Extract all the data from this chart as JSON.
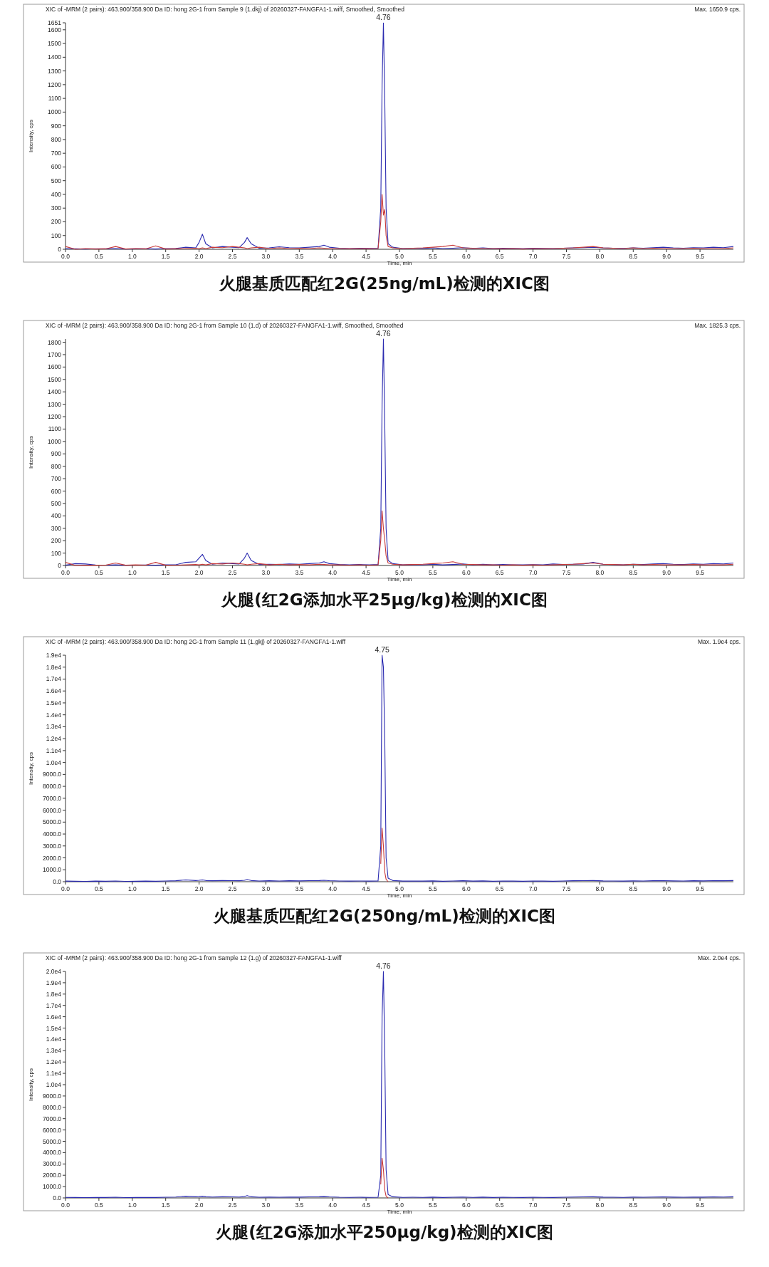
{
  "chart_data": [
    {
      "type": "line",
      "title": "XIC of -MRM (2 pairs): 463.900/358.900 Da ID: hong 2G-1 from Sample 9 (1.dkj) of 20260327-FANGFA1-1.wiff, Smoothed, Smoothed",
      "xlabel": "Time, min",
      "ylabel": "Intensity, cps",
      "annotations": [
        "4.76",
        "Max. 1650.9 cps.",
        "火腿基质匹配红2G(25ng/mL)检测的XIC图"
      ],
      "x": [
        0,
        0.15,
        0.3,
        0.45,
        0.6,
        0.75,
        0.9,
        1.05,
        1.2,
        1.35,
        1.5,
        1.65,
        1.8,
        1.95,
        2.0,
        2.05,
        2.1,
        2.2,
        2.35,
        2.5,
        2.6,
        2.68,
        2.72,
        2.78,
        2.9,
        3.05,
        3.2,
        3.35,
        3.5,
        3.65,
        3.8,
        3.87,
        3.95,
        4.1,
        4.25,
        4.4,
        4.55,
        4.68,
        4.72,
        4.74,
        4.76,
        4.78,
        4.8,
        4.83,
        4.9,
        5.05,
        5.2,
        5.35,
        5.5,
        5.65,
        5.8,
        5.95,
        6.1,
        6.25,
        6.4,
        6.55,
        6.7,
        6.85,
        7.0,
        7.15,
        7.3,
        7.45,
        7.6,
        7.75,
        7.9,
        8.05,
        8.2,
        8.35,
        8.5,
        8.65,
        8.8,
        8.95,
        9.1,
        9.25,
        9.4,
        9.55,
        9.7,
        9.85,
        10.0
      ],
      "series": [
        {
          "color": "#2b2bb0",
          "values": [
            5,
            3,
            2,
            4,
            3,
            5,
            2,
            3,
            4,
            2,
            5,
            6,
            15,
            10,
            50,
            110,
            40,
            10,
            20,
            15,
            12,
            50,
            85,
            40,
            8,
            10,
            18,
            12,
            10,
            15,
            20,
            30,
            15,
            8,
            5,
            8,
            6,
            8,
            300,
            1200,
            1650,
            1100,
            300,
            40,
            15,
            5,
            8,
            6,
            10,
            5,
            8,
            12,
            6,
            10,
            5,
            8,
            6,
            5,
            7,
            6,
            5,
            8,
            10,
            12,
            15,
            10,
            8,
            6,
            10,
            8,
            12,
            15,
            10,
            8,
            12,
            10,
            15,
            12,
            20
          ]
        },
        {
          "color": "#c83a3a",
          "values": [
            20,
            0,
            5,
            2,
            3,
            20,
            2,
            5,
            3,
            25,
            2,
            3,
            5,
            8,
            5,
            10,
            5,
            15,
            12,
            20,
            15,
            10,
            5,
            10,
            15,
            5,
            10,
            5,
            8,
            5,
            10,
            8,
            5,
            5,
            3,
            5,
            3,
            5,
            200,
            400,
            250,
            290,
            100,
            20,
            10,
            5,
            8,
            10,
            15,
            20,
            30,
            10,
            8,
            5,
            5,
            3,
            5,
            2,
            5,
            3,
            5,
            8,
            10,
            15,
            20,
            10,
            8,
            5,
            10,
            5,
            8,
            5,
            5,
            5,
            8,
            5,
            5,
            5,
            10
          ]
        }
      ],
      "xlim": [
        0,
        10
      ],
      "ylim": [
        0,
        1651
      ],
      "xticks": [
        {
          "value": 0,
          "label": "0.0"
        },
        {
          "value": 0.5,
          "label": "0.5"
        },
        {
          "value": 1,
          "label": "1.0"
        },
        {
          "value": 1.5,
          "label": "1.5"
        },
        {
          "value": 2,
          "label": "2.0"
        },
        {
          "value": 2.5,
          "label": "2.5"
        },
        {
          "value": 3,
          "label": "3.0"
        },
        {
          "value": 3.5,
          "label": "3.5"
        },
        {
          "value": 4,
          "label": "4.0"
        },
        {
          "value": 4.5,
          "label": "4.5"
        },
        {
          "value": 5,
          "label": "5.0"
        },
        {
          "value": 5.5,
          "label": "5.5"
        },
        {
          "value": 6,
          "label": "6.0"
        },
        {
          "value": 6.5,
          "label": "6.5"
        },
        {
          "value": 7,
          "label": "7.0"
        },
        {
          "value": 7.5,
          "label": "7.5"
        },
        {
          "value": 8,
          "label": "8.0"
        },
        {
          "value": 8.5,
          "label": "8.5"
        },
        {
          "value": 9,
          "label": "9.0"
        },
        {
          "value": 9.5,
          "label": "9.5"
        }
      ],
      "yticks": [
        0,
        100,
        200,
        300,
        400,
        500,
        600,
        700,
        800,
        900,
        1000,
        1100,
        1200,
        1300,
        1400,
        1500,
        1600,
        1651
      ]
    },
    {
      "type": "line",
      "title": "XIC of -MRM (2 pairs): 463.900/358.900 Da ID: hong 2G-1 from Sample 10 (1.d) of 20260327-FANGFA1-1.wiff, Smoothed, Smoothed",
      "xlabel": "Time, min",
      "ylabel": "Intensity, cps",
      "annotations": [
        "4.76",
        "Max. 1825.3 cps.",
        "火腿(红2G添加水平25μg/kg)检测的XIC图"
      ],
      "x": [
        0,
        0.15,
        0.3,
        0.45,
        0.6,
        0.75,
        0.9,
        1.05,
        1.2,
        1.35,
        1.5,
        1.65,
        1.8,
        1.95,
        2.0,
        2.05,
        2.1,
        2.2,
        2.35,
        2.5,
        2.6,
        2.68,
        2.72,
        2.78,
        2.9,
        3.05,
        3.2,
        3.35,
        3.5,
        3.65,
        3.8,
        3.87,
        3.95,
        4.1,
        4.25,
        4.4,
        4.55,
        4.68,
        4.72,
        4.74,
        4.76,
        4.78,
        4.8,
        4.83,
        4.9,
        5.05,
        5.2,
        5.35,
        5.5,
        5.65,
        5.8,
        5.95,
        6.1,
        6.25,
        6.4,
        6.55,
        6.7,
        6.85,
        7.0,
        7.15,
        7.3,
        7.45,
        7.6,
        7.75,
        7.9,
        8.05,
        8.2,
        8.35,
        8.5,
        8.65,
        8.8,
        8.95,
        9.1,
        9.25,
        9.4,
        9.55,
        9.7,
        9.85,
        10.0
      ],
      "series": [
        {
          "color": "#2b2bb0",
          "values": [
            2,
            15,
            12,
            4,
            3,
            5,
            2,
            3,
            4,
            2,
            5,
            6,
            25,
            30,
            60,
            90,
            40,
            10,
            20,
            15,
            12,
            60,
            100,
            40,
            8,
            10,
            8,
            12,
            10,
            15,
            20,
            30,
            15,
            8,
            5,
            8,
            6,
            8,
            300,
            1300,
            1825,
            1150,
            300,
            40,
            15,
            5,
            8,
            6,
            10,
            5,
            8,
            12,
            6,
            10,
            5,
            8,
            6,
            5,
            7,
            6,
            12,
            8,
            10,
            12,
            25,
            10,
            8,
            6,
            10,
            8,
            12,
            15,
            10,
            8,
            12,
            10,
            15,
            12,
            20
          ]
        },
        {
          "color": "#c83a3a",
          "values": [
            25,
            0,
            2,
            2,
            3,
            20,
            2,
            5,
            3,
            25,
            2,
            3,
            5,
            8,
            5,
            10,
            5,
            15,
            12,
            20,
            15,
            10,
            5,
            10,
            15,
            5,
            10,
            5,
            8,
            5,
            10,
            8,
            5,
            5,
            3,
            5,
            3,
            5,
            200,
            440,
            300,
            200,
            80,
            20,
            10,
            5,
            8,
            10,
            15,
            20,
            30,
            10,
            8,
            5,
            5,
            3,
            5,
            2,
            5,
            3,
            5,
            8,
            10,
            15,
            20,
            10,
            8,
            5,
            10,
            5,
            8,
            5,
            5,
            5,
            8,
            5,
            5,
            5,
            10
          ]
        }
      ],
      "xlim": [
        0,
        10
      ],
      "ylim": [
        0,
        1826
      ],
      "xticks": [
        {
          "value": 0,
          "label": "0.0"
        },
        {
          "value": 0.5,
          "label": "0.5"
        },
        {
          "value": 1,
          "label": "1.0"
        },
        {
          "value": 1.5,
          "label": "1.5"
        },
        {
          "value": 2,
          "label": "2.0"
        },
        {
          "value": 2.5,
          "label": "2.5"
        },
        {
          "value": 3,
          "label": "3.0"
        },
        {
          "value": 3.5,
          "label": "3.5"
        },
        {
          "value": 4,
          "label": "4.0"
        },
        {
          "value": 4.5,
          "label": "4.5"
        },
        {
          "value": 5,
          "label": "5.0"
        },
        {
          "value": 5.5,
          "label": "5.5"
        },
        {
          "value": 6,
          "label": "6.0"
        },
        {
          "value": 6.5,
          "label": "6.5"
        },
        {
          "value": 7,
          "label": "7.0"
        },
        {
          "value": 7.5,
          "label": "7.5"
        },
        {
          "value": 8,
          "label": "8.0"
        },
        {
          "value": 8.5,
          "label": "8.5"
        },
        {
          "value": 9,
          "label": "9.0"
        },
        {
          "value": 9.5,
          "label": "9.5"
        }
      ],
      "yticks": [
        0,
        100,
        200,
        300,
        400,
        500,
        600,
        700,
        800,
        900,
        1000,
        1100,
        1200,
        1300,
        1400,
        1500,
        1600,
        1700,
        1800
      ]
    },
    {
      "type": "line",
      "title": "XIC of -MRM (2 pairs): 463.900/358.900 Da ID: hong 2G-1 from Sample 11 (1.gkj) of 20260327-FANGFA1-1.wiff",
      "xlabel": "Time, min",
      "ylabel": "Intensity, cps",
      "annotations": [
        "4.75",
        "Max. 1.9e4 cps.",
        "火腿基质匹配红2G(250ng/mL)检测的XIC图"
      ],
      "x": [
        0,
        0.15,
        0.3,
        0.45,
        0.6,
        0.75,
        0.9,
        1.05,
        1.2,
        1.35,
        1.5,
        1.65,
        1.8,
        1.95,
        2.0,
        2.05,
        2.1,
        2.2,
        2.35,
        2.5,
        2.6,
        2.68,
        2.72,
        2.78,
        2.9,
        3.05,
        3.2,
        3.35,
        3.5,
        3.65,
        3.8,
        3.87,
        3.95,
        4.1,
        4.25,
        4.4,
        4.55,
        4.68,
        4.72,
        4.74,
        4.76,
        4.78,
        4.8,
        4.83,
        4.9,
        5.05,
        5.2,
        5.35,
        5.5,
        5.65,
        5.8,
        5.95,
        6.1,
        6.25,
        6.4,
        6.55,
        6.7,
        6.85,
        7.0,
        7.15,
        7.3,
        7.45,
        7.6,
        7.75,
        7.9,
        8.05,
        8.2,
        8.35,
        8.5,
        8.65,
        8.8,
        8.95,
        9.1,
        9.25,
        9.4,
        9.55,
        9.7,
        9.85,
        10.0
      ],
      "series": [
        {
          "color": "#2b2bb0",
          "values": [
            50,
            40,
            30,
            50,
            40,
            60,
            30,
            40,
            50,
            40,
            60,
            80,
            150,
            100,
            120,
            150,
            100,
            80,
            100,
            90,
            80,
            120,
            180,
            100,
            60,
            80,
            60,
            80,
            70,
            90,
            100,
            120,
            90,
            60,
            50,
            60,
            50,
            60,
            3000,
            19000,
            18000,
            12000,
            2000,
            300,
            100,
            50,
            60,
            50,
            70,
            40,
            60,
            80,
            50,
            70,
            40,
            60,
            50,
            40,
            60,
            50,
            40,
            60,
            80,
            90,
            100,
            70,
            60,
            50,
            70,
            60,
            80,
            90,
            70,
            60,
            80,
            70,
            90,
            80,
            100
          ]
        },
        {
          "color": "#c83a3a",
          "values": [
            null,
            null,
            null,
            null,
            null,
            null,
            null,
            null,
            null,
            null,
            null,
            null,
            null,
            null,
            null,
            null,
            null,
            null,
            null,
            null,
            null,
            null,
            null,
            null,
            null,
            null,
            null,
            null,
            null,
            null,
            null,
            null,
            null,
            null,
            null,
            null,
            null,
            null,
            1500,
            4500,
            3000,
            800,
            200,
            0,
            null,
            null,
            null,
            null,
            null,
            null,
            null,
            null,
            null,
            null,
            null,
            null,
            null,
            null,
            null,
            null,
            null,
            null,
            null,
            null,
            null,
            null,
            null,
            null,
            null,
            null,
            null,
            null,
            null,
            null,
            null,
            null,
            null,
            null,
            null
          ]
        }
      ],
      "xlim": [
        0,
        10
      ],
      "ylim": [
        0,
        19000
      ],
      "xticks": [
        {
          "value": 0,
          "label": "0.0"
        },
        {
          "value": 0.5,
          "label": "0.5"
        },
        {
          "value": 1,
          "label": "1.0"
        },
        {
          "value": 1.5,
          "label": "1.5"
        },
        {
          "value": 2,
          "label": "2.0"
        },
        {
          "value": 2.5,
          "label": "2.5"
        },
        {
          "value": 3,
          "label": "3.0"
        },
        {
          "value": 3.5,
          "label": "3.5"
        },
        {
          "value": 4,
          "label": "4.0"
        },
        {
          "value": 4.5,
          "label": "4.5"
        },
        {
          "value": 5,
          "label": "5.0"
        },
        {
          "value": 5.5,
          "label": "5.5"
        },
        {
          "value": 6,
          "label": "6.0"
        },
        {
          "value": 6.5,
          "label": "6.5"
        },
        {
          "value": 7,
          "label": "7.0"
        },
        {
          "value": 7.5,
          "label": "7.5"
        },
        {
          "value": 8,
          "label": "8.0"
        },
        {
          "value": 8.5,
          "label": "8.5"
        },
        {
          "value": 9,
          "label": "9.0"
        },
        {
          "value": 9.5,
          "label": "9.5"
        }
      ],
      "yticks": [
        {
          "value": 0,
          "label": "0.0"
        },
        {
          "value": 1000,
          "label": "1000.0"
        },
        {
          "value": 2000,
          "label": "2000.0"
        },
        {
          "value": 3000,
          "label": "3000.0"
        },
        {
          "value": 4000,
          "label": "4000.0"
        },
        {
          "value": 5000,
          "label": "5000.0"
        },
        {
          "value": 6000,
          "label": "6000.0"
        },
        {
          "value": 7000,
          "label": "7000.0"
        },
        {
          "value": 8000,
          "label": "8000.0"
        },
        {
          "value": 9000,
          "label": "9000.0"
        },
        {
          "value": 10000,
          "label": "1.0e4"
        },
        {
          "value": 11000,
          "label": "1.1e4"
        },
        {
          "value": 12000,
          "label": "1.2e4"
        },
        {
          "value": 13000,
          "label": "1.3e4"
        },
        {
          "value": 14000,
          "label": "1.4e4"
        },
        {
          "value": 15000,
          "label": "1.5e4"
        },
        {
          "value": 16000,
          "label": "1.6e4"
        },
        {
          "value": 17000,
          "label": "1.7e4"
        },
        {
          "value": 18000,
          "label": "1.8e4"
        },
        {
          "value": 19000,
          "label": "1.9e4"
        }
      ]
    },
    {
      "type": "line",
      "title": "XIC of -MRM (2 pairs): 463.900/358.900 Da ID: hong 2G-1 from Sample 12 (1.g) of 20260327-FANGFA1-1.wiff",
      "xlabel": "Time, min",
      "ylabel": "Intensity, cps",
      "annotations": [
        "4.76",
        "Max. 2.0e4 cps.",
        "火腿(红2G添加水平250μg/kg)检测的XIC图"
      ],
      "x": [
        0,
        0.15,
        0.3,
        0.45,
        0.6,
        0.75,
        0.9,
        1.05,
        1.2,
        1.35,
        1.5,
        1.65,
        1.8,
        1.95,
        2.0,
        2.05,
        2.1,
        2.2,
        2.35,
        2.5,
        2.6,
        2.68,
        2.72,
        2.78,
        2.9,
        3.05,
        3.2,
        3.35,
        3.5,
        3.65,
        3.8,
        3.87,
        3.95,
        4.1,
        4.25,
        4.4,
        4.55,
        4.68,
        4.72,
        4.74,
        4.76,
        4.78,
        4.8,
        4.83,
        4.9,
        5.05,
        5.2,
        5.35,
        5.5,
        5.65,
        5.8,
        5.95,
        6.1,
        6.25,
        6.4,
        6.55,
        6.7,
        6.85,
        7.0,
        7.15,
        7.3,
        7.45,
        7.6,
        7.75,
        7.9,
        8.05,
        8.2,
        8.35,
        8.5,
        8.65,
        8.8,
        8.95,
        9.1,
        9.25,
        9.4,
        9.55,
        9.7,
        9.85,
        10.0
      ],
      "series": [
        {
          "color": "#2b2bb0",
          "values": [
            50,
            40,
            30,
            50,
            40,
            60,
            30,
            40,
            50,
            40,
            60,
            80,
            150,
            100,
            120,
            150,
            100,
            80,
            100,
            90,
            80,
            120,
            200,
            100,
            60,
            80,
            60,
            80,
            70,
            90,
            100,
            120,
            90,
            60,
            50,
            60,
            50,
            60,
            2000,
            16000,
            20000,
            13000,
            2500,
            300,
            100,
            50,
            60,
            50,
            70,
            40,
            60,
            80,
            50,
            70,
            40,
            60,
            50,
            40,
            60,
            50,
            40,
            60,
            80,
            90,
            100,
            70,
            60,
            50,
            70,
            60,
            80,
            90,
            70,
            60,
            80,
            70,
            90,
            80,
            100
          ]
        },
        {
          "color": "#c83a3a",
          "values": [
            null,
            null,
            null,
            null,
            null,
            null,
            null,
            null,
            null,
            null,
            null,
            null,
            null,
            null,
            null,
            null,
            null,
            null,
            null,
            null,
            null,
            null,
            null,
            null,
            null,
            null,
            null,
            null,
            null,
            null,
            null,
            null,
            null,
            null,
            null,
            null,
            null,
            null,
            1200,
            3500,
            2500,
            700,
            150,
            0,
            null,
            null,
            null,
            null,
            null,
            null,
            null,
            null,
            null,
            null,
            null,
            null,
            null,
            null,
            null,
            null,
            null,
            null,
            null,
            null,
            null,
            null,
            null,
            null,
            null,
            null,
            null,
            null,
            null,
            null,
            null,
            null,
            null,
            null,
            null
          ]
        }
      ],
      "xlim": [
        0,
        10
      ],
      "ylim": [
        0,
        20000
      ],
      "xticks": [
        {
          "value": 0,
          "label": "0.0"
        },
        {
          "value": 0.5,
          "label": "0.5"
        },
        {
          "value": 1,
          "label": "1.0"
        },
        {
          "value": 1.5,
          "label": "1.5"
        },
        {
          "value": 2,
          "label": "2.0"
        },
        {
          "value": 2.5,
          "label": "2.5"
        },
        {
          "value": 3,
          "label": "3.0"
        },
        {
          "value": 3.5,
          "label": "3.5"
        },
        {
          "value": 4,
          "label": "4.0"
        },
        {
          "value": 4.5,
          "label": "4.5"
        },
        {
          "value": 5,
          "label": "5.0"
        },
        {
          "value": 5.5,
          "label": "5.5"
        },
        {
          "value": 6,
          "label": "6.0"
        },
        {
          "value": 6.5,
          "label": "6.5"
        },
        {
          "value": 7,
          "label": "7.0"
        },
        {
          "value": 7.5,
          "label": "7.5"
        },
        {
          "value": 8,
          "label": "8.0"
        },
        {
          "value": 8.5,
          "label": "8.5"
        },
        {
          "value": 9,
          "label": "9.0"
        },
        {
          "value": 9.5,
          "label": "9.5"
        }
      ],
      "yticks": [
        {
          "value": 0,
          "label": "0.0"
        },
        {
          "value": 1000,
          "label": "1000.0"
        },
        {
          "value": 2000,
          "label": "2000.0"
        },
        {
          "value": 3000,
          "label": "3000.0"
        },
        {
          "value": 4000,
          "label": "4000.0"
        },
        {
          "value": 5000,
          "label": "5000.0"
        },
        {
          "value": 6000,
          "label": "6000.0"
        },
        {
          "value": 7000,
          "label": "7000.0"
        },
        {
          "value": 8000,
          "label": "8000.0"
        },
        {
          "value": 9000,
          "label": "9000.0"
        },
        {
          "value": 10000,
          "label": "1.0e4"
        },
        {
          "value": 11000,
          "label": "1.1e4"
        },
        {
          "value": 12000,
          "label": "1.2e4"
        },
        {
          "value": 13000,
          "label": "1.3e4"
        },
        {
          "value": 14000,
          "label": "1.4e4"
        },
        {
          "value": 15000,
          "label": "1.5e4"
        },
        {
          "value": 16000,
          "label": "1.6e4"
        },
        {
          "value": 17000,
          "label": "1.7e4"
        },
        {
          "value": 18000,
          "label": "1.8e4"
        },
        {
          "value": 19000,
          "label": "1.9e4"
        },
        {
          "value": 20000,
          "label": "2.0e4"
        }
      ]
    }
  ]
}
